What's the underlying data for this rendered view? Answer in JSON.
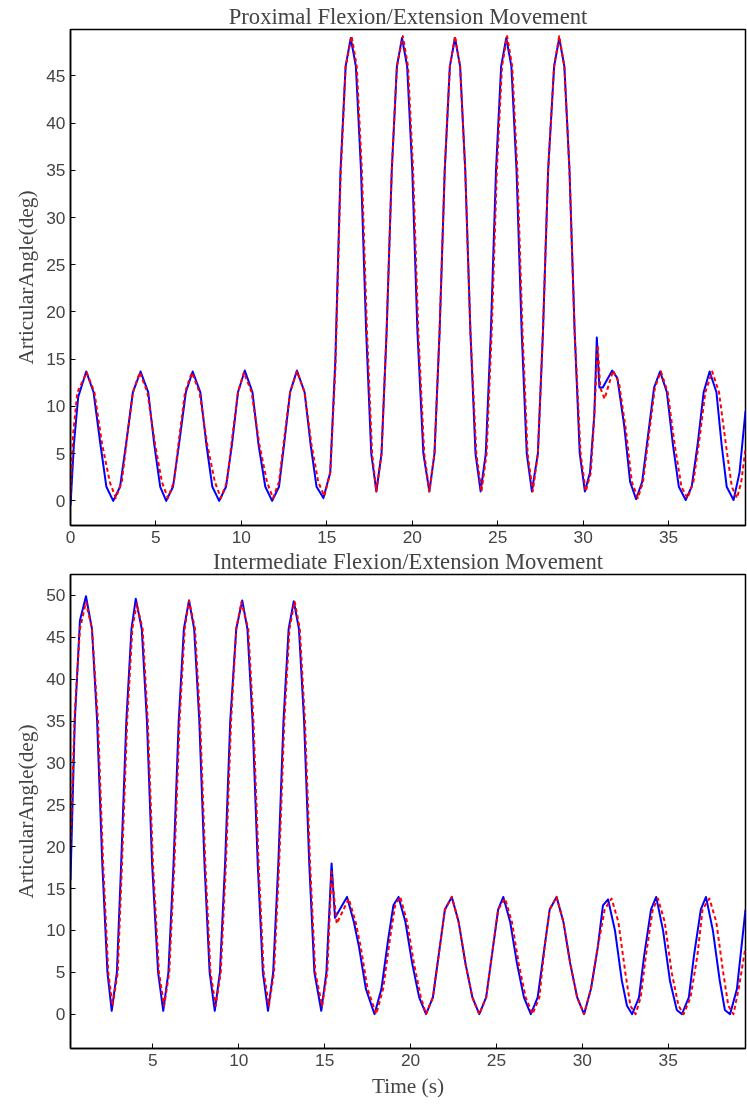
{
  "chart_data": [
    {
      "type": "line",
      "title": "Proximal Flexion/Extension Movement",
      "ylabel": "ArticularAngle(deg)",
      "xlim": [
        0,
        39.5
      ],
      "ylim": [
        -2.6,
        49.9
      ],
      "xticks": [
        0,
        5,
        10,
        15,
        20,
        25,
        30,
        35
      ],
      "yticks": [
        0,
        5,
        10,
        15,
        20,
        25,
        30,
        35,
        40,
        45
      ],
      "grid": false,
      "series": [
        {
          "color": "#0000ff",
          "line_style": "solid",
          "x": [
            0,
            0.2,
            0.45,
            0.92,
            1.35,
            1.75,
            2.1,
            2.5,
            2.9,
            3.25,
            3.65,
            4.1,
            4.55,
            4.9,
            5.25,
            5.6,
            6.0,
            6.35,
            6.75,
            7.15,
            7.6,
            7.95,
            8.3,
            8.7,
            9.1,
            9.45,
            9.8,
            10.2,
            10.65,
            11.0,
            11.4,
            11.8,
            12.2,
            12.5,
            12.85,
            13.25,
            13.7,
            14.05,
            14.4,
            14.8,
            15.2,
            15.5,
            15.8,
            16.1,
            16.4,
            16.7,
            17.0,
            17.3,
            17.6,
            17.9,
            18.2,
            18.5,
            18.8,
            19.1,
            19.4,
            19.7,
            20.0,
            20.3,
            20.65,
            21.0,
            21.3,
            21.6,
            21.9,
            22.2,
            22.5,
            22.8,
            23.1,
            23.4,
            23.7,
            24.0,
            24.3,
            24.6,
            24.9,
            25.2,
            25.5,
            25.8,
            26.1,
            26.4,
            26.7,
            27.0,
            27.35,
            27.65,
            27.95,
            28.3,
            28.6,
            28.9,
            29.2,
            29.5,
            29.8,
            30.1,
            30.4,
            30.65,
            30.8,
            30.95,
            31.15,
            31.7,
            32.0,
            32.4,
            32.75,
            33.1,
            33.45,
            33.8,
            34.15,
            34.5,
            34.9,
            35.25,
            35.6,
            36.0,
            36.35,
            36.7,
            37.05,
            37.4,
            37.8,
            38.1,
            38.4,
            38.8,
            39.15,
            39.5
          ],
          "values": [
            -0.5,
            6,
            11,
            13.7,
            11.5,
            6,
            1.5,
            0,
            1.5,
            6,
            11.5,
            13.7,
            11.5,
            6,
            1.5,
            0,
            1.5,
            6,
            11.5,
            13.7,
            11.5,
            6,
            1.5,
            0,
            1.5,
            6,
            11.5,
            13.8,
            11.5,
            6,
            1.5,
            0,
            1.5,
            6,
            11.5,
            13.8,
            11.5,
            6,
            1.5,
            0.3,
            3,
            15,
            35,
            46,
            49,
            46,
            35,
            18,
            5,
            1,
            5,
            18,
            35,
            46,
            49,
            46,
            35,
            18,
            5,
            1,
            5,
            18,
            35,
            46,
            49,
            46,
            35,
            18,
            5,
            1,
            5,
            18,
            35,
            46,
            49,
            46,
            35,
            18,
            5,
            1,
            5,
            18,
            35,
            46,
            49,
            46,
            35,
            18,
            5,
            1,
            3,
            9,
            17.3,
            12,
            12,
            13.8,
            13,
            8,
            2,
            0.2,
            2,
            7,
            12,
            13.7,
            11.5,
            6,
            1.5,
            0.1,
            1.5,
            6,
            11.5,
            13.7,
            11.5,
            6,
            1.5,
            0.1,
            3,
            9.5
          ]
        },
        {
          "color": "#ff0000",
          "line_style": "dashed",
          "x": [
            0,
            0.15,
            0.4,
            0.95,
            1.4,
            1.85,
            2.3,
            2.65,
            3.0,
            3.3,
            3.65,
            4.05,
            4.5,
            4.95,
            5.35,
            5.7,
            6.05,
            6.35,
            6.7,
            7.1,
            7.55,
            8.0,
            8.45,
            8.8,
            9.15,
            9.45,
            9.8,
            10.15,
            10.6,
            11.05,
            11.5,
            11.85,
            12.2,
            12.5,
            12.85,
            13.25,
            13.7,
            14.1,
            14.5,
            14.85,
            15.2,
            15.5,
            15.8,
            16.1,
            16.45,
            16.75,
            17.05,
            17.35,
            17.65,
            17.9,
            18.2,
            18.5,
            18.8,
            19.1,
            19.45,
            19.75,
            20.05,
            20.35,
            20.7,
            21.0,
            21.3,
            21.6,
            21.9,
            22.2,
            22.5,
            22.8,
            23.1,
            23.4,
            23.75,
            24.05,
            24.35,
            24.65,
            24.95,
            25.25,
            25.55,
            25.85,
            26.15,
            26.45,
            26.75,
            27.05,
            27.35,
            27.65,
            27.95,
            28.3,
            28.6,
            28.9,
            29.2,
            29.5,
            29.85,
            30.15,
            30.45,
            30.65,
            30.85,
            31.0,
            31.25,
            31.75,
            32.1,
            32.5,
            32.85,
            33.2,
            33.5,
            33.85,
            34.2,
            34.55,
            34.95,
            35.35,
            35.75,
            36.1,
            36.45,
            36.8,
            37.15,
            37.55,
            37.95,
            38.35,
            38.7,
            39.0,
            39.25,
            39.5
          ],
          "values": [
            0.5,
            7,
            11.5,
            13.6,
            11.5,
            6,
            2,
            0.3,
            2,
            6.5,
            11.5,
            13.6,
            11.5,
            6,
            2,
            0.3,
            2,
            6.5,
            11.5,
            13.6,
            11.5,
            6,
            2,
            0.3,
            2,
            6.5,
            11.5,
            13.6,
            11.5,
            6,
            2,
            0.3,
            2,
            6.5,
            11.5,
            13.7,
            11.5,
            6,
            2,
            0.5,
            3,
            14,
            34,
            46,
            49.2,
            46,
            35,
            18,
            5,
            1,
            5,
            18,
            35,
            46,
            49.2,
            46,
            35,
            18,
            5,
            1,
            5,
            18,
            35,
            46,
            49.2,
            46,
            35,
            18,
            5,
            1,
            5,
            18,
            35,
            46,
            49.2,
            46,
            35,
            18,
            5,
            1,
            5,
            18,
            35,
            46,
            49.2,
            46,
            35,
            18,
            5,
            1,
            3,
            9,
            16.5,
            12,
            10.8,
            13.8,
            12.5,
            7.5,
            2,
            0.3,
            2,
            7,
            12,
            13.7,
            11.5,
            6,
            1.5,
            0.3,
            2,
            6.5,
            11.5,
            13.7,
            11.5,
            6,
            1.5,
            0.3,
            2,
            5.5
          ]
        }
      ]
    },
    {
      "type": "line",
      "title": "Intermediate Flexion/Extension Movement",
      "xlabel": "Time (s)",
      "ylabel": "ArticularAngle(deg)",
      "xlim": [
        0.2,
        39.5
      ],
      "ylim": [
        -4.1,
        52.5
      ],
      "xticks": [
        5,
        10,
        15,
        20,
        25,
        30,
        35
      ],
      "yticks": [
        0,
        5,
        10,
        15,
        20,
        25,
        30,
        35,
        40,
        45,
        50
      ],
      "grid": false,
      "series": [
        {
          "color": "#0000ff",
          "line_style": "solid",
          "x": [
            0.2,
            0.45,
            0.75,
            1.1,
            1.45,
            1.75,
            2.05,
            2.35,
            2.6,
            2.9,
            3.15,
            3.45,
            3.75,
            4.0,
            4.35,
            4.65,
            4.95,
            5.3,
            5.6,
            5.9,
            6.2,
            6.5,
            6.8,
            7.1,
            7.4,
            7.7,
            8.0,
            8.3,
            8.6,
            8.9,
            9.2,
            9.5,
            9.85,
            10.2,
            10.5,
            10.8,
            11.1,
            11.4,
            11.7,
            12.0,
            12.3,
            12.6,
            12.9,
            13.2,
            13.5,
            13.8,
            14.1,
            14.4,
            14.8,
            15.1,
            15.4,
            15.6,
            16.3,
            16.7,
            17.0,
            17.4,
            17.9,
            18.3,
            18.7,
            19.0,
            19.3,
            19.7,
            20.1,
            20.5,
            20.9,
            21.3,
            21.7,
            22.0,
            22.4,
            22.8,
            23.2,
            23.6,
            24.0,
            24.4,
            24.8,
            25.1,
            25.4,
            25.8,
            26.2,
            26.6,
            27.0,
            27.4,
            27.8,
            28.1,
            28.5,
            28.9,
            29.3,
            29.7,
            30.1,
            30.5,
            30.7,
            30.9,
            31.2,
            31.5,
            31.9,
            32.3,
            32.6,
            32.9,
            33.3,
            33.6,
            34.0,
            34.3,
            34.7,
            35.1,
            35.5,
            35.8,
            36.2,
            36.5,
            36.9,
            37.2,
            37.6,
            38.0,
            38.3,
            38.6,
            39.0,
            39.5
          ],
          "values": [
            16,
            35,
            47,
            49.9,
            46,
            35,
            18,
            5,
            0.4,
            5,
            18,
            35,
            46,
            49.6,
            46,
            35,
            18,
            5,
            0.4,
            5,
            18,
            35,
            46,
            49.4,
            46,
            35,
            18,
            5,
            0.4,
            5,
            18,
            35,
            46,
            49.4,
            46,
            35,
            18,
            5,
            0.4,
            5,
            18,
            35,
            46,
            49.3,
            46,
            35,
            18,
            5,
            0.4,
            5,
            18,
            11.5,
            14,
            11,
            8,
            3,
            0,
            3,
            9,
            13,
            14,
            11,
            6,
            2,
            0,
            2,
            8,
            12.5,
            14,
            11,
            6,
            2,
            0,
            2,
            8,
            12.5,
            14,
            11,
            6,
            2,
            0,
            2,
            8,
            12.5,
            14,
            11,
            6,
            2,
            0,
            3,
            5.5,
            8,
            13,
            13.7,
            10,
            4,
            1,
            0,
            2,
            7,
            12.5,
            14,
            10,
            4,
            0.5,
            0,
            2,
            7,
            12.5,
            14,
            10,
            4,
            0.5,
            0,
            3,
            12.5
          ]
        },
        {
          "color": "#ff0000",
          "line_style": "dashed",
          "x": [
            0.2,
            0.45,
            0.75,
            1.1,
            1.45,
            1.8,
            2.1,
            2.4,
            2.65,
            2.95,
            3.2,
            3.5,
            3.8,
            4.05,
            4.4,
            4.7,
            5.0,
            5.35,
            5.65,
            5.95,
            6.25,
            6.55,
            6.85,
            7.1,
            7.45,
            7.75,
            8.05,
            8.35,
            8.65,
            8.95,
            9.25,
            9.55,
            9.85,
            10.15,
            10.55,
            10.85,
            11.15,
            11.45,
            11.75,
            12.05,
            12.35,
            12.65,
            12.95,
            13.25,
            13.55,
            13.85,
            14.15,
            14.45,
            14.85,
            15.15,
            15.4,
            15.7,
            16.4,
            16.8,
            17.1,
            17.5,
            18.0,
            18.4,
            18.8,
            19.1,
            19.4,
            19.8,
            20.2,
            20.6,
            20.9,
            21.3,
            21.7,
            22.0,
            22.4,
            22.8,
            23.2,
            23.6,
            24.0,
            24.4,
            24.8,
            25.1,
            25.5,
            25.9,
            26.3,
            26.7,
            27.1,
            27.5,
            27.8,
            28.1,
            28.5,
            28.9,
            29.3,
            29.7,
            30.1,
            30.5,
            30.9,
            31.3,
            31.7,
            32.1,
            32.5,
            32.8,
            33.1,
            33.4,
            33.7,
            34.1,
            34.4,
            34.8,
            35.2,
            35.6,
            35.9,
            36.3,
            36.7,
            37.0,
            37.4,
            37.8,
            38.2,
            38.5,
            38.8,
            39.1,
            39.5
          ],
          "values": [
            20,
            36,
            46,
            49.2,
            46,
            35,
            18,
            5,
            1,
            5,
            18,
            35,
            46,
            49,
            46,
            35,
            18,
            5,
            1,
            5,
            18,
            35,
            46,
            49.4,
            46,
            35,
            18,
            5,
            1,
            5,
            18,
            35,
            46,
            49.2,
            46,
            35,
            18,
            5,
            1,
            5,
            18,
            35,
            46,
            49.3,
            46,
            35,
            18,
            5,
            1,
            5,
            17,
            10.8,
            13.8,
            11,
            8,
            3,
            0,
            3,
            9,
            13,
            14,
            11,
            6,
            2,
            0,
            2,
            8,
            12.5,
            14,
            11,
            6,
            2,
            0,
            2,
            8,
            12.5,
            13.8,
            11,
            6,
            2,
            0,
            2,
            8,
            12.5,
            14,
            11,
            6,
            2,
            0,
            3,
            8,
            12.5,
            13.8,
            11,
            5,
            1,
            0,
            2,
            7,
            12.5,
            13.8,
            11,
            5,
            1,
            0,
            2,
            7,
            12.5,
            13.8,
            11,
            5,
            1,
            0,
            3,
            8
          ]
        }
      ]
    }
  ]
}
